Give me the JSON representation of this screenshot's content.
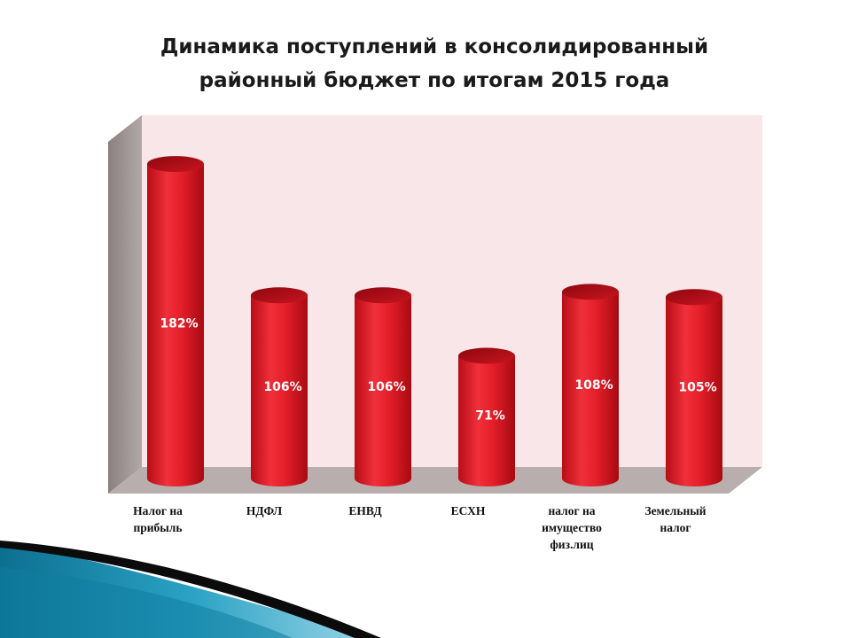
{
  "title_lines": [
    "Динамика поступлений в консолидированный",
    "районный бюджет по итогам 2015 года"
  ],
  "chart_data": {
    "type": "bar",
    "title": "Динамика поступлений в консолидированный районный бюджет по итогам 2015 года",
    "categories": [
      [
        "Налог на",
        "прибыль"
      ],
      [
        "НДФЛ"
      ],
      [
        "ЕНВД"
      ],
      [
        "ЕСХН"
      ],
      [
        "налог на",
        "имущество",
        "физ.лиц"
      ],
      [
        "Земельный",
        "налог"
      ]
    ],
    "values": [
      182,
      106,
      106,
      71,
      108,
      105
    ],
    "value_labels": [
      "182%",
      "106%",
      "106%",
      "71%",
      "108%",
      "105%"
    ],
    "unit": "%",
    "style": "3d-cylinder",
    "bar_color": "#e0202a",
    "wall_color": "#f9e6e8",
    "side_wall_color": "#9a9090",
    "floor_color": "#b8aeae",
    "grid": false,
    "legend": "none"
  },
  "decor": {
    "swoosh_dark": "#0b0b0b",
    "swoosh_teal": "#1b8fb0",
    "swoosh_light": "#7fc9e0"
  }
}
